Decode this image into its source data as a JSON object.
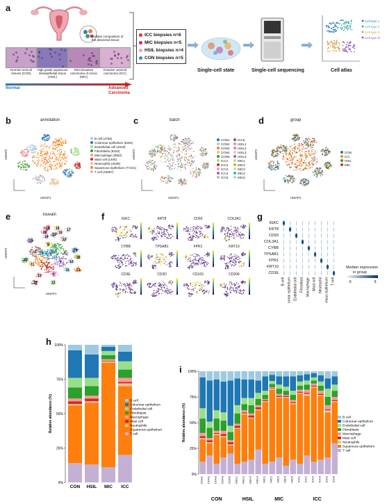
{
  "panels": {
    "a": "a",
    "b": "b",
    "c": "c",
    "d": "d",
    "e": "e",
    "f": "f",
    "g": "g",
    "h": "h",
    "i": "i"
  },
  "panel_a": {
    "cellular_label": "Cellular composition of the dissected tissue",
    "histology": [
      {
        "label": "Normal cervical tissues (CON)",
        "color": "#c8a0c8"
      },
      {
        "label": "High grade squamous intraepithelial lesion (HSIL)",
        "color": "#8878b8"
      },
      {
        "label": "Microinvasive carcinoma of cervix (MIC)",
        "color": "#b888b8"
      },
      {
        "label": "Invasive cervical carcinoma (ICC)",
        "color": "#d8b0d0"
      }
    ],
    "arrow_left": "Normal",
    "arrow_right_1": "Advanced",
    "arrow_right_2": "Carcinoma",
    "biopsies": [
      {
        "label": "ICC biopsies n=6",
        "color": "#e03030"
      },
      {
        "label": "MIC biopsies n=5",
        "color": "#c03060"
      },
      {
        "label": "HSIL biopsies n=4",
        "color": "#f0a0b0"
      },
      {
        "label": "CON biopsies n=5",
        "color": "#3090c0"
      }
    ],
    "steps": [
      "Single-cell state",
      "Single-cell sequencing",
      "Cell atlas"
    ],
    "atlas_legend": [
      "Cell type 1",
      "Cell type 2",
      "Cell type 3",
      "Cell type N"
    ],
    "atlas_colors": [
      "#3080c0",
      "#40b0a0",
      "#d0a040",
      "#9060c0"
    ]
  },
  "panel_b": {
    "title": "annotation",
    "xlabel": "UMAP1",
    "ylabel": "UMAP2",
    "legend": [
      {
        "label": "B cell (4756)",
        "color": "#9ecae1"
      },
      {
        "label": "Columnar epithelium (8291)",
        "color": "#1f77b4"
      },
      {
        "label": "Endothelial cell (4919)",
        "color": "#98df8a"
      },
      {
        "label": "Fibroblasts (8429)",
        "color": "#2ca02c"
      },
      {
        "label": "Macrophage (3802)",
        "color": "#ff9896"
      },
      {
        "label": "Mast cell (1405)",
        "color": "#d62728"
      },
      {
        "label": "Neutrophils (2038)",
        "color": "#e5c494"
      },
      {
        "label": "Squamous epithelium (77101)",
        "color": "#ff7f0e"
      },
      {
        "label": "T cell (16697)",
        "color": "#c5b0d5"
      }
    ]
  },
  "panel_c": {
    "title": "batch",
    "xlabel": "UMAP1",
    "ylabel": "UMAP2",
    "legend_col1": [
      {
        "label": "CON1",
        "color": "#1f77b4"
      },
      {
        "label": "CON2",
        "color": "#aec7e8"
      },
      {
        "label": "CON3",
        "color": "#ff7f0e"
      },
      {
        "label": "CON4",
        "color": "#ffbb78"
      },
      {
        "label": "CON5",
        "color": "#2ca02c"
      },
      {
        "label": "ICC1",
        "color": "#98df8a"
      },
      {
        "label": "ICC2",
        "color": "#d62728"
      },
      {
        "label": "ICC3",
        "color": "#ff9896"
      },
      {
        "label": "ICC4",
        "color": "#9467bd"
      },
      {
        "label": "ICC5",
        "color": "#c5b0d5"
      }
    ],
    "legend_col2": [
      {
        "label": "ICC6",
        "color": "#8c564b"
      },
      {
        "label": "HSIL1",
        "color": "#c49c94"
      },
      {
        "label": "HSIL2",
        "color": "#e377c2"
      },
      {
        "label": "HSIL3",
        "color": "#f7b6d2"
      },
      {
        "label": "HSIL4",
        "color": "#7f7f7f"
      },
      {
        "label": "MIC1",
        "color": "#c7c7c7"
      },
      {
        "label": "MIC2",
        "color": "#bcbd22"
      },
      {
        "label": "MIC3",
        "color": "#dbdb8d"
      },
      {
        "label": "MIC4",
        "color": "#17becf"
      },
      {
        "label": "MIC5",
        "color": "#9edae5"
      }
    ]
  },
  "panel_d": {
    "title": "group",
    "xlabel": "UMAP1",
    "ylabel": "UMAP2",
    "legend": [
      {
        "label": "CON",
        "color": "#1f77b4"
      },
      {
        "label": "ICC",
        "color": "#ff7f0e"
      },
      {
        "label": "HSIL",
        "color": "#2ca02c"
      },
      {
        "label": "MIC",
        "color": "#d62728"
      }
    ]
  },
  "panel_e": {
    "title": "louvain",
    "xlabel": "UMAP1",
    "ylabel": "UMAP2",
    "clusters": [
      "0",
      "1",
      "2",
      "3",
      "4",
      "5",
      "6",
      "7",
      "8",
      "9",
      "10",
      "11",
      "12",
      "13",
      "14",
      "15",
      "16",
      "17",
      "18",
      "19",
      "20",
      "21",
      "22",
      "23",
      "24",
      "25",
      "26",
      "27",
      "28"
    ]
  },
  "panel_f": {
    "genes": [
      "IGKC",
      "KRT8",
      "CD93",
      "COL3A1",
      "CYBB",
      "TPSAB1",
      "FPR1",
      "KRT10",
      "CD3E",
      "CD3D",
      "CD163",
      "CD206"
    ],
    "axis_label": "UMAP"
  },
  "panel_g": {
    "genes": [
      "IGKC",
      "KRT8",
      "CD93",
      "COL3A1",
      "CYBB",
      "TPSAB1",
      "FPR1",
      "KRT10",
      "CD3E"
    ],
    "cell_types": [
      "B cell",
      "Columnar epithelium",
      "Endothelial cell",
      "Fibroblast",
      "Macrophage",
      "Mast cell",
      "Neutrophil",
      "Squamous epithelium",
      "T cell"
    ],
    "colorbar_label_1": "Median expression",
    "colorbar_label_2": "in group",
    "colorbar_ticks": [
      "0",
      "5"
    ]
  },
  "legend_celltypes": [
    {
      "label": "B cell",
      "color": "#9ecae1"
    },
    {
      "label": "Columnar epithelium",
      "color": "#1f77b4"
    },
    {
      "label": "Endothelial cell",
      "color": "#98df8a"
    },
    {
      "label": "Fibroblasts",
      "color": "#2ca02c"
    },
    {
      "label": "Macrophage",
      "color": "#ff9896"
    },
    {
      "label": "Mast cell",
      "color": "#d62728"
    },
    {
      "label": "Neutrophils",
      "color": "#e5c494"
    },
    {
      "label": "Squamous epithelium",
      "color": "#ff7f0e"
    },
    {
      "label": "T cell",
      "color": "#c5b0d5"
    }
  ],
  "chart_data": [
    {
      "type": "bar",
      "stacked": true,
      "panel": "h",
      "ylabel": "Relative abundance (%)",
      "ylim": [
        0,
        100
      ],
      "yticks": [
        "0%",
        "25%",
        "50%",
        "75%",
        "100%"
      ],
      "categories": [
        "CON",
        "HSIL",
        "MIC",
        "ICC"
      ],
      "series": [
        {
          "name": "T cell",
          "values": [
            14,
            13,
            11,
            20
          ]
        },
        {
          "name": "Squamous epithelium",
          "values": [
            42,
            45,
            76,
            50
          ]
        },
        {
          "name": "Neutrophils",
          "values": [
            1,
            1,
            1,
            2
          ]
        },
        {
          "name": "Mast cell",
          "values": [
            2,
            2,
            0.5,
            1
          ]
        },
        {
          "name": "Macrophage",
          "values": [
            2,
            2,
            1,
            3
          ]
        },
        {
          "name": "Fibroblasts",
          "values": [
            8,
            7,
            3,
            6
          ]
        },
        {
          "name": "Endothelial cell",
          "values": [
            7,
            6,
            3,
            6
          ]
        },
        {
          "name": "Columnar epithelium",
          "values": [
            20,
            17,
            3,
            7
          ]
        },
        {
          "name": "B cell",
          "values": [
            4,
            7,
            1.5,
            5
          ]
        }
      ]
    },
    {
      "type": "bar",
      "stacked": true,
      "panel": "i",
      "ylabel": "Relative abundance (%)",
      "ylim": [
        0,
        100
      ],
      "yticks": [
        "0%",
        "25%",
        "50%",
        "75%",
        "100%"
      ],
      "group_labels": [
        "CON",
        "HSIL",
        "MIC",
        "ICC"
      ],
      "categories": [
        "CON1",
        "CON2",
        "CON3",
        "CON4",
        "CON5",
        "HSIL1",
        "HSIL2",
        "HSIL3",
        "HSIL4",
        "MIC1",
        "MIC2",
        "MIC3",
        "MIC4",
        "MIC5",
        "ICC1",
        "ICC2",
        "ICC3",
        "ICC4",
        "ICC5",
        "ICC6"
      ],
      "series": [
        {
          "name": "T cell",
          "values": [
            12,
            18,
            10,
            16,
            20,
            10,
            12,
            14,
            24,
            10,
            12,
            16,
            8,
            14,
            10,
            18,
            12,
            14,
            16,
            30
          ]
        },
        {
          "name": "Squamous epithelium",
          "values": [
            22,
            12,
            28,
            20,
            8,
            34,
            46,
            40,
            38,
            60,
            70,
            58,
            66,
            54,
            68,
            58,
            72,
            62,
            44,
            40
          ]
        },
        {
          "name": "Neutrophils",
          "values": [
            1,
            1,
            1,
            1,
            1,
            1,
            1,
            1,
            1,
            1,
            1,
            1,
            1,
            1,
            1,
            2,
            1,
            1,
            2,
            1
          ]
        },
        {
          "name": "Mast cell",
          "values": [
            2,
            2,
            1,
            2,
            2,
            2,
            1,
            2,
            2,
            1,
            0.5,
            1,
            1,
            1,
            1,
            1,
            1,
            1,
            1,
            1
          ]
        },
        {
          "name": "Macrophage",
          "values": [
            3,
            2,
            2,
            3,
            2,
            2,
            2,
            2,
            2,
            1,
            1,
            2,
            1,
            2,
            2,
            3,
            2,
            3,
            4,
            3
          ]
        },
        {
          "name": "Fibroblasts",
          "values": [
            14,
            10,
            12,
            10,
            8,
            10,
            6,
            8,
            6,
            4,
            3,
            5,
            4,
            5,
            4,
            5,
            3,
            5,
            8,
            6
          ]
        },
        {
          "name": "Endothelial cell",
          "values": [
            10,
            6,
            8,
            8,
            6,
            8,
            6,
            7,
            6,
            4,
            3,
            4,
            4,
            4,
            4,
            4,
            3,
            4,
            8,
            6
          ]
        },
        {
          "name": "Columnar epithelium",
          "values": [
            30,
            40,
            30,
            30,
            44,
            26,
            18,
            18,
            12,
            14,
            6,
            8,
            10,
            14,
            6,
            6,
            4,
            6,
            10,
            8
          ]
        },
        {
          "name": "B cell",
          "values": [
            6,
            9,
            8,
            10,
            9,
            7,
            8,
            8,
            9,
            5,
            3.5,
            5,
            5,
            5,
            4,
            3,
            2,
            4,
            7,
            5
          ]
        }
      ]
    }
  ]
}
